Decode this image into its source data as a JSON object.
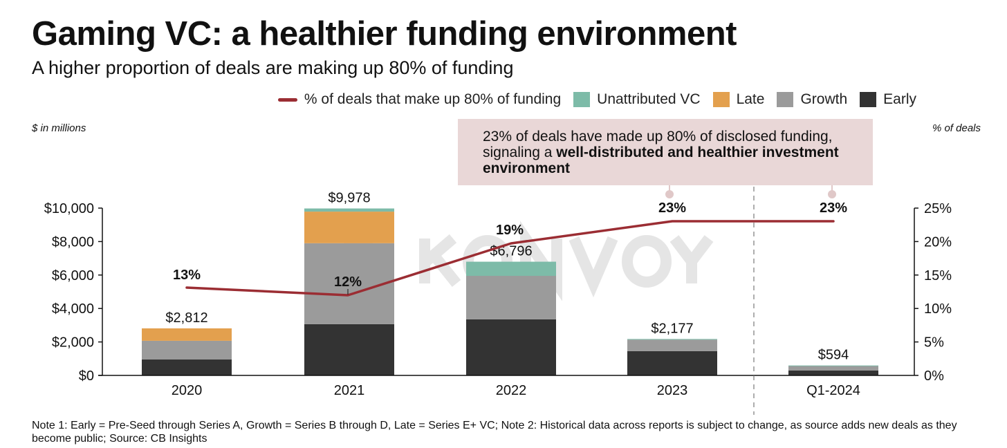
{
  "header": {
    "title": "Gaming VC: a healthier funding environment",
    "subtitle": "A higher proportion of deals are making up 80% of funding"
  },
  "legend": {
    "line_label": "% of deals that make up 80% of funding",
    "items": [
      {
        "label": "Unattributed VC",
        "color": "#7dbba8"
      },
      {
        "label": "Late",
        "color": "#e3a04e"
      },
      {
        "label": "Growth",
        "color": "#9b9b9b"
      },
      {
        "label": "Early",
        "color": "#333333"
      }
    ],
    "line_color": "#9b2d33"
  },
  "axis_labels": {
    "left": "$ in millions",
    "right": "% of deals"
  },
  "callout": {
    "text_plain": "23% of deals have made up 80% of disclosed funding, signaling a ",
    "text_bold": "well-distributed and healthier investment environment",
    "background": "#e9d7d7"
  },
  "note": "Note 1: Early = Pre-Seed through Series A, Growth = Series B through D, Late = Series E+ VC; Note 2: Historical data across reports is subject to change, as source adds new deals as they become public; Source: CB Insights",
  "watermark": "KONVOY",
  "chart_data": {
    "type": "bar",
    "stacked": true,
    "title": "Gaming VC: a healthier funding environment",
    "subtitle": "A higher proportion of deals are making up 80% of funding",
    "categories": [
      "2020",
      "2021",
      "2022",
      "2023",
      "Q1-2024"
    ],
    "series": [
      {
        "name": "Early",
        "color": "#333333",
        "values": [
          950,
          3060,
          3350,
          1450,
          290
        ]
      },
      {
        "name": "Growth",
        "color": "#9b9b9b",
        "values": [
          1120,
          4840,
          2600,
          690,
          290
        ]
      },
      {
        "name": "Late",
        "color": "#e3a04e",
        "values": [
          742,
          1890,
          0,
          0,
          0
        ]
      },
      {
        "name": "Unattributed VC",
        "color": "#7dbba8",
        "values": [
          0,
          188,
          846,
          37,
          14
        ]
      }
    ],
    "totals": [
      2812,
      9978,
      6796,
      2177,
      594
    ],
    "total_labels": [
      "$2,812",
      "$9,978",
      "$6,796",
      "$2,177",
      "$594"
    ],
    "line_series": {
      "name": "% of deals that make up 80% of funding",
      "color": "#9b2d33",
      "axis": "right",
      "values": [
        13,
        12,
        19,
        23,
        23
      ],
      "labels": [
        "13%",
        "12%",
        "19%",
        "23%",
        "23%"
      ]
    },
    "ylabel": "$ in millions",
    "ylim": [
      0,
      10000
    ],
    "yticks": [
      0,
      2000,
      4000,
      6000,
      8000,
      10000
    ],
    "ytick_labels": [
      "$0",
      "$2,000",
      "$4,000",
      "$6,000",
      "$8,000",
      "$10,000"
    ],
    "y2label": "% of deals",
    "y2lim": [
      0,
      25
    ],
    "y2ticks": [
      0,
      5,
      10,
      15,
      20,
      25
    ],
    "y2tick_labels": [
      "0%",
      "5%",
      "10%",
      "15%",
      "20%",
      "25%"
    ],
    "grid": false,
    "legend_position": "top-right",
    "divider_after_category": "2023"
  }
}
